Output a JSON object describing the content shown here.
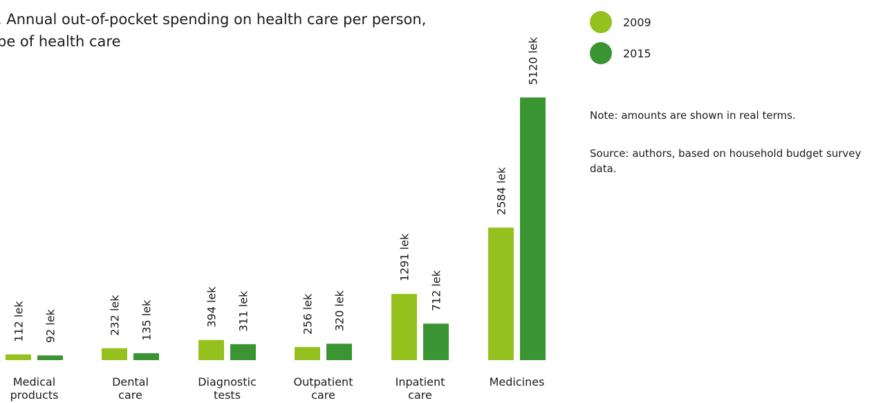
{
  "chart_data": {
    "type": "bar",
    "title_lines": [
      "Annual out-of-pocket spending on health care per person,",
      "pe of health care"
    ],
    "title_prefix": ".",
    "categories": [
      [
        "Medical",
        "products"
      ],
      [
        "Dental",
        "care"
      ],
      [
        "Diagnostic",
        "tests"
      ],
      [
        "Outpatient",
        "care"
      ],
      [
        "Inpatient",
        "care"
      ],
      [
        "Medicines"
      ]
    ],
    "series": [
      {
        "name": "2009",
        "color": "#95c11f",
        "values": [
          112,
          232,
          394,
          256,
          1291,
          2584
        ],
        "labels": [
          "112 lek",
          "232 lek",
          "394 lek",
          "256 lek",
          "1291 lek",
          "2584 lek"
        ]
      },
      {
        "name": "2015",
        "color": "#3a9431",
        "values": [
          92,
          135,
          311,
          320,
          712,
          5120
        ],
        "labels": [
          "92 lek",
          "135 lek",
          "311 lek",
          "320 lek",
          "712 lek",
          "5120 lek"
        ]
      }
    ],
    "ylim": [
      0,
      5120
    ],
    "unit": "lek",
    "grid": false,
    "legend_position": "top-right"
  },
  "notes": {
    "note": "Note: amounts are shown in real terms.",
    "source": "Source: authors, based on household budget survey data."
  }
}
